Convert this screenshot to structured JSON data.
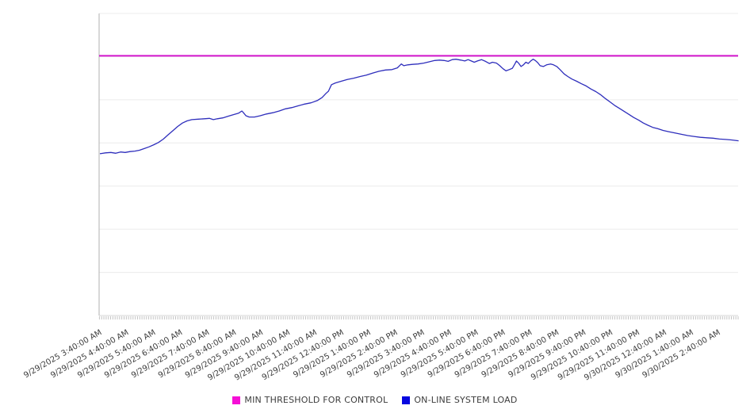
{
  "chart_data": {
    "type": "line",
    "title": "",
    "x_axis": {
      "x_unit": "hours since 9/29/2025 3:40:00 AM",
      "range_hours": [
        0,
        23.75
      ],
      "minor_tick_interval_minutes": 5,
      "labels_rotation_deg": -30,
      "tick_labels": [
        "9/29/2025 3:40:00 AM",
        "9/29/2025 4:40:00 AM",
        "9/29/2025 5:40:00 AM",
        "9/29/2025 6:40:00 AM",
        "9/29/2025 7:40:00 AM",
        "9/29/2025 8:40:00 AM",
        "9/29/2025 9:40:00 AM",
        "9/29/2025 10:40:00 AM",
        "9/29/2025 11:40:00 AM",
        "9/29/2025 12:40:00 PM",
        "9/29/2025 1:40:00 PM",
        "9/29/2025 2:40:00 PM",
        "9/29/2025 3:40:00 PM",
        "9/29/2025 4:40:00 PM",
        "9/29/2025 5:40:00 PM",
        "9/29/2025 6:40:00 PM",
        "9/29/2025 7:40:00 PM",
        "9/29/2025 8:40:00 PM",
        "9/29/2025 9:40:00 PM",
        "9/29/2025 10:40:00 PM",
        "9/29/2025 11:40:00 PM",
        "9/30/2025 12:40:00 AM",
        "9/30/2025 1:40:00 AM",
        "9/30/2025 2:40:00 AM"
      ]
    },
    "y_axis": {
      "labels_visible": false,
      "y_unit": "gridline units (no numeric labels shown on chart)",
      "range": [
        0,
        7
      ],
      "gridline_step": 1,
      "grid_on": true
    },
    "legend_position": "bottom-center",
    "series": [
      {
        "name": "MIN THRESHOLD FOR CONTROL",
        "type": "constant-line",
        "color": "#d316cd",
        "value": 6.02
      },
      {
        "name": "ON-LINE SYSTEM LOAD",
        "type": "line",
        "color": "#2e2ebc",
        "points": [
          [
            0.0,
            3.75
          ],
          [
            0.21,
            3.77
          ],
          [
            0.41,
            3.78
          ],
          [
            0.59,
            3.76
          ],
          [
            0.77,
            3.79
          ],
          [
            0.94,
            3.78
          ],
          [
            1.12,
            3.8
          ],
          [
            1.3,
            3.81
          ],
          [
            1.47,
            3.83
          ],
          [
            1.65,
            3.87
          ],
          [
            1.83,
            3.91
          ],
          [
            2.01,
            3.96
          ],
          [
            2.18,
            4.01
          ],
          [
            2.36,
            4.09
          ],
          [
            2.54,
            4.19
          ],
          [
            2.71,
            4.28
          ],
          [
            2.89,
            4.38
          ],
          [
            3.07,
            4.46
          ],
          [
            3.24,
            4.51
          ],
          [
            3.42,
            4.54
          ],
          [
            3.66,
            4.55
          ],
          [
            3.89,
            4.56
          ],
          [
            4.07,
            4.57
          ],
          [
            4.22,
            4.54
          ],
          [
            4.37,
            4.56
          ],
          [
            4.57,
            4.58
          ],
          [
            4.78,
            4.62
          ],
          [
            4.99,
            4.66
          ],
          [
            5.16,
            4.69
          ],
          [
            5.28,
            4.74
          ],
          [
            5.34,
            4.7
          ],
          [
            5.43,
            4.63
          ],
          [
            5.55,
            4.6
          ],
          [
            5.75,
            4.6
          ],
          [
            5.96,
            4.63
          ],
          [
            6.19,
            4.67
          ],
          [
            6.43,
            4.7
          ],
          [
            6.67,
            4.74
          ],
          [
            6.9,
            4.79
          ],
          [
            7.14,
            4.82
          ],
          [
            7.37,
            4.86
          ],
          [
            7.61,
            4.9
          ],
          [
            7.85,
            4.93
          ],
          [
            8.08,
            4.98
          ],
          [
            8.26,
            5.05
          ],
          [
            8.41,
            5.15
          ],
          [
            8.5,
            5.2
          ],
          [
            8.61,
            5.35
          ],
          [
            8.76,
            5.39
          ],
          [
            8.97,
            5.43
          ],
          [
            9.2,
            5.47
          ],
          [
            9.44,
            5.5
          ],
          [
            9.68,
            5.54
          ],
          [
            9.91,
            5.57
          ],
          [
            10.15,
            5.62
          ],
          [
            10.38,
            5.66
          ],
          [
            10.62,
            5.69
          ],
          [
            10.86,
            5.7
          ],
          [
            11.06,
            5.74
          ],
          [
            11.21,
            5.83
          ],
          [
            11.3,
            5.79
          ],
          [
            11.45,
            5.81
          ],
          [
            11.62,
            5.82
          ],
          [
            11.83,
            5.83
          ],
          [
            12.04,
            5.85
          ],
          [
            12.24,
            5.88
          ],
          [
            12.45,
            5.91
          ],
          [
            12.63,
            5.92
          ],
          [
            12.8,
            5.91
          ],
          [
            12.95,
            5.89
          ],
          [
            13.1,
            5.93
          ],
          [
            13.24,
            5.94
          ],
          [
            13.42,
            5.92
          ],
          [
            13.57,
            5.9
          ],
          [
            13.69,
            5.93
          ],
          [
            13.81,
            5.9
          ],
          [
            13.92,
            5.87
          ],
          [
            14.04,
            5.9
          ],
          [
            14.19,
            5.93
          ],
          [
            14.34,
            5.89
          ],
          [
            14.48,
            5.84
          ],
          [
            14.6,
            5.87
          ],
          [
            14.75,
            5.85
          ],
          [
            14.87,
            5.79
          ],
          [
            14.99,
            5.72
          ],
          [
            15.1,
            5.67
          ],
          [
            15.22,
            5.7
          ],
          [
            15.34,
            5.73
          ],
          [
            15.43,
            5.83
          ],
          [
            15.49,
            5.9
          ],
          [
            15.58,
            5.84
          ],
          [
            15.66,
            5.77
          ],
          [
            15.75,
            5.81
          ],
          [
            15.84,
            5.87
          ],
          [
            15.93,
            5.84
          ],
          [
            16.02,
            5.9
          ],
          [
            16.11,
            5.94
          ],
          [
            16.19,
            5.91
          ],
          [
            16.28,
            5.86
          ],
          [
            16.37,
            5.79
          ],
          [
            16.49,
            5.77
          ],
          [
            16.61,
            5.81
          ],
          [
            16.76,
            5.83
          ],
          [
            16.87,
            5.81
          ],
          [
            16.99,
            5.77
          ],
          [
            17.11,
            5.7
          ],
          [
            17.26,
            5.6
          ],
          [
            17.4,
            5.54
          ],
          [
            17.55,
            5.48
          ],
          [
            17.73,
            5.43
          ],
          [
            17.91,
            5.37
          ],
          [
            18.08,
            5.32
          ],
          [
            18.26,
            5.25
          ],
          [
            18.44,
            5.19
          ],
          [
            18.61,
            5.12
          ],
          [
            18.79,
            5.03
          ],
          [
            18.97,
            4.95
          ],
          [
            19.14,
            4.87
          ],
          [
            19.32,
            4.8
          ],
          [
            19.5,
            4.73
          ],
          [
            19.68,
            4.66
          ],
          [
            19.85,
            4.59
          ],
          [
            20.03,
            4.53
          ],
          [
            20.21,
            4.46
          ],
          [
            20.38,
            4.41
          ],
          [
            20.56,
            4.36
          ],
          [
            20.74,
            4.33
          ],
          [
            20.94,
            4.29
          ],
          [
            21.15,
            4.26
          ],
          [
            21.39,
            4.23
          ],
          [
            21.62,
            4.2
          ],
          [
            21.86,
            4.17
          ],
          [
            22.09,
            4.15
          ],
          [
            22.33,
            4.13
          ],
          [
            22.57,
            4.12
          ],
          [
            22.8,
            4.11
          ],
          [
            23.04,
            4.09
          ],
          [
            23.27,
            4.08
          ],
          [
            23.48,
            4.07
          ],
          [
            23.75,
            4.05
          ]
        ]
      }
    ],
    "colors": {
      "threshold_line": "#d316cd",
      "load_line": "#2e2ebc",
      "gridline": "#ececec",
      "y_axis_line": "#b0b0b0",
      "bottom_axis_line": "#d5d5d5",
      "minor_tick": "#c4c4c4",
      "label_text": "#3d3d3d"
    }
  },
  "legend": {
    "items": [
      {
        "label": "MIN THRESHOLD FOR CONTROL",
        "color": "#f50fd6",
        "swatch": "magenta-square"
      },
      {
        "label": "ON-LINE SYSTEM LOAD",
        "color": "#0707e0",
        "swatch": "blue-square"
      }
    ]
  }
}
